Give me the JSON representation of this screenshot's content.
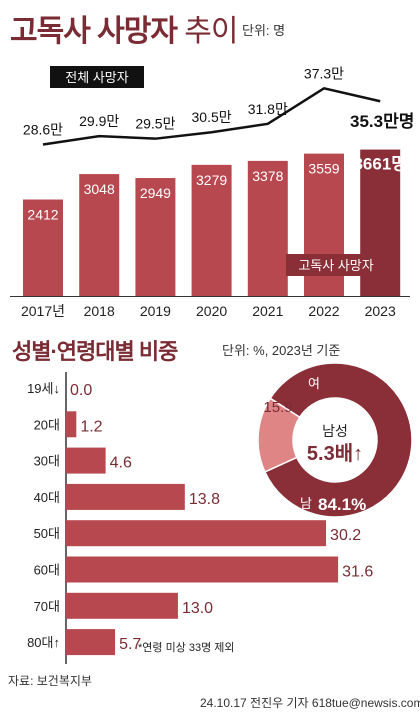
{
  "title": {
    "main": "고독사 사망자",
    "suffix": "추이",
    "unit": "단위: 명"
  },
  "section2": {
    "title": "성별·연령대별 비중",
    "unit": "단위: %, 2023년 기준"
  },
  "source": "자료: 보건복지부",
  "credit": "24.10.17 전진우 기자 618tue@newsis.com",
  "colors": {
    "bar": "#b8484f",
    "barDark": "#8a2f38",
    "pieMale": "#8a2f38",
    "pieFemale": "#e08585",
    "accent": "#7a2b33"
  },
  "chart_data": [
    {
      "type": "bar",
      "categories": [
        "2017년",
        "2018",
        "2019",
        "2020",
        "2021",
        "2022",
        "2023"
      ],
      "series": [
        {
          "name": "고독사 사망자",
          "values": [
            2412,
            3048,
            2949,
            3279,
            3378,
            3559,
            3661
          ]
        }
      ],
      "value_labels": [
        "2412",
        "3048",
        "2949",
        "3279",
        "3378",
        "3559",
        "3661명"
      ],
      "legend": "고독사 사망자"
    },
    {
      "type": "line",
      "categories": [
        "2017년",
        "2018",
        "2019",
        "2020",
        "2021",
        "2022",
        "2023"
      ],
      "series": [
        {
          "name": "전체 사망자",
          "values": [
            28.6,
            29.9,
            29.5,
            30.5,
            31.8,
            37.3,
            35.3
          ]
        }
      ],
      "value_labels": [
        "28.6만",
        "29.9만",
        "29.5만",
        "30.5만",
        "31.8만",
        "37.3만",
        "35.3만명"
      ],
      "legend": "전체 사망자"
    },
    {
      "type": "bar",
      "orientation": "horizontal",
      "categories": [
        "19세↓",
        "20대",
        "30대",
        "40대",
        "50대",
        "60대",
        "70대",
        "80대↑"
      ],
      "values": [
        0.0,
        1.2,
        4.6,
        13.8,
        30.2,
        31.6,
        13.0,
        5.7
      ],
      "value_labels": [
        "0.0",
        "1.2",
        "4.6",
        "13.8",
        "30.2",
        "31.6",
        "13.0",
        "5.7"
      ],
      "note": "*연령 미상 33명 제외"
    },
    {
      "type": "pie",
      "slices": [
        {
          "name": "남",
          "value": 84.1,
          "label": "84.1%"
        },
        {
          "name": "여",
          "value": 15.9,
          "label": "15.9"
        }
      ],
      "center_label": "남성",
      "center_value": "5.3배↑"
    }
  ]
}
